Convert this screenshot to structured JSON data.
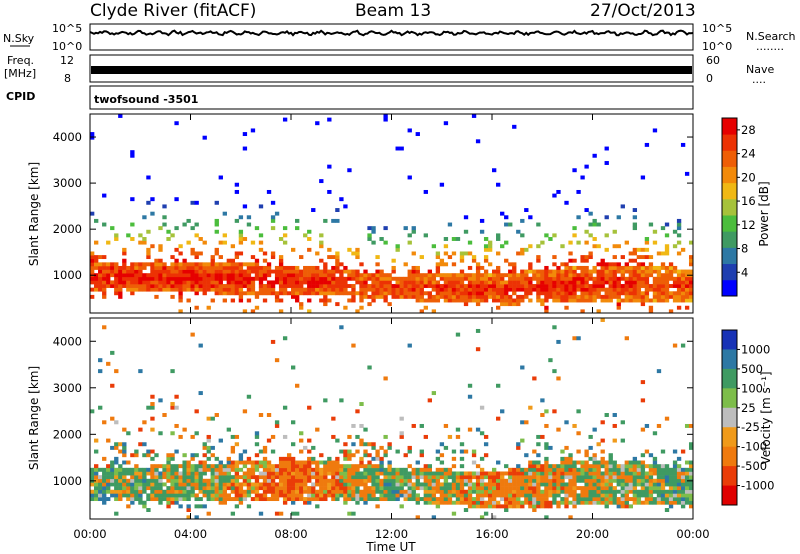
{
  "header": {
    "station": "Clyde River (fitACF)",
    "beam": "Beam 13",
    "date": "27/Oct/2013"
  },
  "panels": {
    "nsky_label": "N.Sky",
    "nsearch_label": "N.Search",
    "nsearch_dots": "........",
    "nsky_ticks": [
      "10^5",
      "10^0"
    ],
    "nsearch_ticks": [
      "10^5",
      "10^0"
    ],
    "freq_label_line1": "Freq.",
    "freq_label_line2": "[MHz]",
    "freq_ticks": [
      "12",
      "8"
    ],
    "nave_label": "Nave",
    "nave_dots": "....",
    "nave_ticks": [
      "60",
      "0"
    ],
    "cpid_label": "CPID",
    "cpid_value": "twofsound -3501"
  },
  "axes": {
    "ylabel": "Slant Range [km]",
    "xlabel": "Time UT",
    "y_ticks": [
      "1000",
      "2000",
      "3000",
      "4000"
    ],
    "x_ticks": [
      "00:00",
      "04:00",
      "08:00",
      "12:00",
      "16:00",
      "20:00",
      "00:00"
    ]
  },
  "colorbars": {
    "power": {
      "title": "Power [dB]",
      "ticks": [
        "4",
        "8",
        "12",
        "16",
        "20",
        "24",
        "28"
      ],
      "colors": [
        "#0000ff",
        "#1f3fb0",
        "#2d78a4",
        "#3f9a62",
        "#4bbd3c",
        "#a6c23a",
        "#f0b814",
        "#f28a0a",
        "#ee5e06",
        "#ec3204",
        "#e60000"
      ]
    },
    "velocity": {
      "title": "Velocity [m s⁻¹]",
      "ticks": [
        "1000",
        "500",
        "100",
        "25",
        "-25",
        "-100",
        "-500",
        "-1000"
      ],
      "colors": [
        "#1732b6",
        "#2d78a4",
        "#3f9a62",
        "#7dbd4a",
        "#bdbdbd",
        "#f09a1a",
        "#ef7a0e",
        "#ea3c08",
        "#e00000"
      ]
    }
  },
  "chart_data": [
    {
      "type": "heatmap",
      "title": "Power [dB]",
      "xlabel": "Time UT",
      "ylabel": "Slant Range [km]",
      "x_range": [
        "00:00",
        "24:00"
      ],
      "y_range": [
        180,
        4500
      ],
      "value_range": [
        0,
        30
      ],
      "band_profile": [
        {
          "time": "00:00",
          "center_km": 950,
          "halfwidth_km": 300,
          "power_db": 28,
          "max_range_km": 3000
        },
        {
          "time": "04:00",
          "center_km": 950,
          "halfwidth_km": 330,
          "power_db": 28,
          "max_range_km": 3100
        },
        {
          "time": "08:00",
          "center_km": 900,
          "halfwidth_km": 320,
          "power_db": 28,
          "max_range_km": 2900
        },
        {
          "time": "12:00",
          "center_km": 750,
          "halfwidth_km": 250,
          "power_db": 26,
          "max_range_km": 2400
        },
        {
          "time": "16:00",
          "center_km": 680,
          "halfwidth_km": 350,
          "power_db": 27,
          "max_range_km": 2600
        },
        {
          "time": "20:00",
          "center_km": 820,
          "halfwidth_km": 400,
          "power_db": 28,
          "max_range_km": 2600
        },
        {
          "time": "24:00",
          "center_km": 800,
          "halfwidth_km": 350,
          "power_db": 26,
          "max_range_km": 2300
        }
      ]
    },
    {
      "type": "heatmap",
      "title": "Velocity [m s⁻¹]",
      "xlabel": "Time UT",
      "ylabel": "Slant Range [km]",
      "x_range": [
        "00:00",
        "24:00"
      ],
      "y_range": [
        180,
        4500
      ],
      "value_range": [
        -1000,
        1000
      ],
      "band_profile": [
        {
          "time": "00:00",
          "center_km": 950,
          "halfwidth_km": 350,
          "velocity_ms": 150,
          "max_range_km": 2900
        },
        {
          "time": "04:00",
          "center_km": 950,
          "halfwidth_km": 380,
          "velocity_ms": 30,
          "max_range_km": 3000
        },
        {
          "time": "08:00",
          "center_km": 1050,
          "halfwidth_km": 450,
          "velocity_ms": -300,
          "max_range_km": 2700
        },
        {
          "time": "12:00",
          "center_km": 950,
          "halfwidth_km": 350,
          "velocity_ms": 120,
          "max_range_km": 2500
        },
        {
          "time": "16:00",
          "center_km": 800,
          "halfwidth_km": 400,
          "velocity_ms": -200,
          "max_range_km": 2600
        },
        {
          "time": "20:00",
          "center_km": 1000,
          "halfwidth_km": 500,
          "velocity_ms": -30,
          "max_range_km": 2500
        },
        {
          "time": "24:00",
          "center_km": 900,
          "halfwidth_km": 400,
          "velocity_ms": 150,
          "max_range_km": 2200
        }
      ]
    }
  ]
}
